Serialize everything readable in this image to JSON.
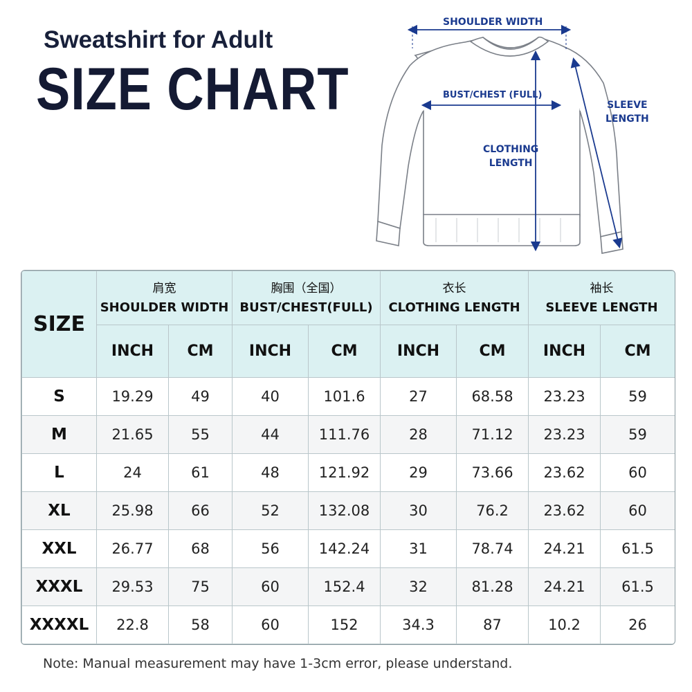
{
  "header": {
    "subtitle": "Sweatshirt for Adult",
    "title": "SIZE CHART"
  },
  "diagram": {
    "shoulder_width": "SHOULDER WIDTH",
    "bust_chest": "BUST/CHEST (FULL)",
    "clothing_length_1": "CLOTHING",
    "clothing_length_2": "LENGTH",
    "sleeve_length_1": "SLEEVE",
    "sleeve_length_2": "LENGTH",
    "accent_color": "#1a3a8f"
  },
  "table": {
    "size_header": "SIZE",
    "groups": [
      {
        "zh": "肩宽",
        "en": "SHOULDER WIDTH"
      },
      {
        "zh": "胸围（全国）",
        "en": "BUST/CHEST(FULL)"
      },
      {
        "zh": "衣长",
        "en": "CLOTHING LENGTH"
      },
      {
        "zh": "袖长",
        "en": "SLEEVE LENGTH"
      }
    ],
    "units": [
      "INCH",
      "CM",
      "INCH",
      "CM",
      "INCH",
      "CM",
      "INCH",
      "CM"
    ],
    "header_color": "#dbf1f2",
    "rows": [
      {
        "size": "S",
        "cells": [
          "19.29",
          "49",
          "40",
          "101.6",
          "27",
          "68.58",
          "23.23",
          "59"
        ]
      },
      {
        "size": "M",
        "cells": [
          "21.65",
          "55",
          "44",
          "111.76",
          "28",
          "71.12",
          "23.23",
          "59"
        ]
      },
      {
        "size": "L",
        "cells": [
          "24",
          "61",
          "48",
          "121.92",
          "29",
          "73.66",
          "23.62",
          "60"
        ]
      },
      {
        "size": "XL",
        "cells": [
          "25.98",
          "66",
          "52",
          "132.08",
          "30",
          "76.2",
          "23.62",
          "60"
        ]
      },
      {
        "size": "XXL",
        "cells": [
          "26.77",
          "68",
          "56",
          "142.24",
          "31",
          "78.74",
          "24.21",
          "61.5"
        ]
      },
      {
        "size": "XXXL",
        "cells": [
          "29.53",
          "75",
          "60",
          "152.4",
          "32",
          "81.28",
          "24.21",
          "61.5"
        ]
      },
      {
        "size": "XXXXL",
        "cells": [
          "22.8",
          "58",
          "60",
          "152",
          "34.3",
          "87",
          "10.2",
          "26"
        ]
      }
    ]
  },
  "note": "Note: Manual measurement may have 1-3cm error, please understand."
}
